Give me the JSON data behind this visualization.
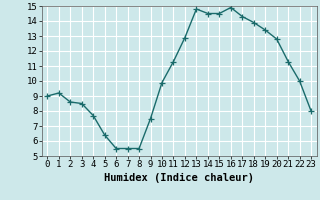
{
  "x": [
    0,
    1,
    2,
    3,
    4,
    5,
    6,
    7,
    8,
    9,
    10,
    11,
    12,
    13,
    14,
    15,
    16,
    17,
    18,
    19,
    20,
    21,
    22,
    23
  ],
  "y": [
    9.0,
    9.2,
    8.6,
    8.5,
    7.7,
    6.4,
    5.5,
    5.5,
    5.5,
    7.5,
    9.9,
    11.3,
    12.9,
    14.8,
    14.5,
    14.5,
    14.9,
    14.3,
    13.9,
    13.4,
    12.8,
    11.3,
    10.0,
    8.0
  ],
  "line_color": "#1a6b6b",
  "marker": "+",
  "marker_size": 4,
  "xlabel": "Humidex (Indice chaleur)",
  "xlim": [
    -0.5,
    23.5
  ],
  "ylim": [
    5,
    15
  ],
  "yticks": [
    5,
    6,
    7,
    8,
    9,
    10,
    11,
    12,
    13,
    14,
    15
  ],
  "xticks": [
    0,
    1,
    2,
    3,
    4,
    5,
    6,
    7,
    8,
    9,
    10,
    11,
    12,
    13,
    14,
    15,
    16,
    17,
    18,
    19,
    20,
    21,
    22,
    23
  ],
  "background_color": "#cde8ea",
  "grid_color": "#ffffff",
  "tick_label_fontsize": 6.5,
  "xlabel_fontsize": 7.5,
  "line_width": 1.0
}
